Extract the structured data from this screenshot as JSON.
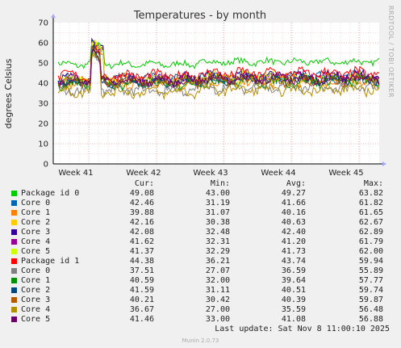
{
  "chart_data": {
    "type": "line",
    "title": "Temperatures - by month",
    "ylabel": "degrees Celsius",
    "xlabel": "",
    "ylim": [
      0,
      70
    ],
    "yticks": [
      0,
      10,
      20,
      30,
      40,
      50,
      60,
      70
    ],
    "xticks": [
      "Week 41",
      "Week 42",
      "Week 43",
      "Week 44",
      "Week 45"
    ],
    "grid": true,
    "side_label": "RRDTOOL / TOBI OETIKER",
    "legend_headers": [
      "Cur:",
      "Min:",
      "Avg:",
      "Max:"
    ],
    "series": [
      {
        "name": "Package id 0",
        "color": "#00cc00",
        "cur": "49.08",
        "min": "43.00",
        "avg": "49.27",
        "max": "63.82",
        "base": 49.3
      },
      {
        "name": "Core 0",
        "color": "#0066b3",
        "cur": "42.46",
        "min": "31.19",
        "avg": "41.66",
        "max": "61.82",
        "base": 41.7
      },
      {
        "name": "Core 1",
        "color": "#ff8000",
        "cur": "39.88",
        "min": "31.07",
        "avg": "40.16",
        "max": "61.65",
        "base": 40.2
      },
      {
        "name": "Core 2",
        "color": "#ffcc00",
        "cur": "42.16",
        "min": "30.38",
        "avg": "40.63",
        "max": "62.67",
        "base": 40.6
      },
      {
        "name": "Core 3",
        "color": "#330099",
        "cur": "42.08",
        "min": "32.48",
        "avg": "42.40",
        "max": "62.89",
        "base": 42.4
      },
      {
        "name": "Core 4",
        "color": "#990099",
        "cur": "41.62",
        "min": "32.31",
        "avg": "41.20",
        "max": "61.79",
        "base": 41.2
      },
      {
        "name": "Core 5",
        "color": "#ccff00",
        "cur": "41.37",
        "min": "32.29",
        "avg": "41.73",
        "max": "62.00",
        "base": 41.7
      },
      {
        "name": "Package id 1",
        "color": "#ff0000",
        "cur": "44.38",
        "min": "36.21",
        "avg": "43.74",
        "max": "59.94",
        "base": 43.7
      },
      {
        "name": "Core 0",
        "color": "#808080",
        "cur": "37.51",
        "min": "27.07",
        "avg": "36.59",
        "max": "55.89",
        "base": 36.6
      },
      {
        "name": "Core 1",
        "color": "#008f00",
        "cur": "40.59",
        "min": "32.00",
        "avg": "39.64",
        "max": "57.77",
        "base": 39.6
      },
      {
        "name": "Core 2",
        "color": "#00487d",
        "cur": "41.59",
        "min": "31.11",
        "avg": "40.51",
        "max": "59.74",
        "base": 40.5
      },
      {
        "name": "Core 3",
        "color": "#b35a00",
        "cur": "40.21",
        "min": "30.42",
        "avg": "40.39",
        "max": "59.87",
        "base": 40.4
      },
      {
        "name": "Core 4",
        "color": "#b38f00",
        "cur": "36.67",
        "min": "27.00",
        "avg": "35.59",
        "max": "56.48",
        "base": 35.6
      },
      {
        "name": "Core 5",
        "color": "#6b006b",
        "cur": "41.46",
        "min": "33.00",
        "avg": "41.08",
        "max": "56.88",
        "base": 41.1
      }
    ]
  },
  "last_update": "Last update: Sat Nov  8 11:00:10 2025",
  "footer": "Munin 2.0.73"
}
